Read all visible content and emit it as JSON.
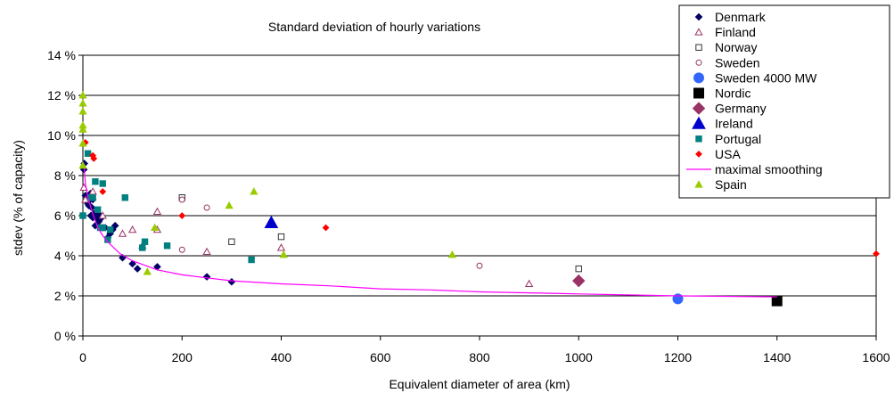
{
  "chart_data": {
    "type": "scatter",
    "title": "Standard deviation of hourly variations",
    "xlabel": "Equivalent diameter of area (km)",
    "ylabel": "stdev (% of capacity)",
    "xlim": [
      0,
      1600
    ],
    "ylim": [
      0,
      14
    ],
    "x_ticks": [
      0,
      200,
      400,
      600,
      800,
      1000,
      1200,
      1400,
      1600
    ],
    "y_ticks": [
      0,
      2,
      4,
      6,
      8,
      10,
      12,
      14
    ],
    "y_tick_suffix": " %",
    "grid": "horizontal",
    "legend_position": "top-right",
    "series": [
      {
        "name": "Denmark",
        "marker": "diamond",
        "color": "#000066",
        "filled": true,
        "points": [
          [
            2,
            8.3
          ],
          [
            3,
            8.6
          ],
          [
            5,
            7.0
          ],
          [
            8,
            6.8
          ],
          [
            10,
            6.6
          ],
          [
            12,
            6.5
          ],
          [
            14,
            6.8
          ],
          [
            15,
            7.1
          ],
          [
            16,
            6.0
          ],
          [
            18,
            6.4
          ],
          [
            20,
            6.8
          ],
          [
            20,
            5.9
          ],
          [
            22,
            6.1
          ],
          [
            25,
            5.5
          ],
          [
            28,
            6.0
          ],
          [
            30,
            6.1
          ],
          [
            30,
            5.8
          ],
          [
            32,
            5.7
          ],
          [
            35,
            6.0
          ],
          [
            38,
            5.9
          ],
          [
            40,
            5.4
          ],
          [
            45,
            5.4
          ],
          [
            50,
            4.9
          ],
          [
            55,
            5.1
          ],
          [
            60,
            5.3
          ],
          [
            65,
            5.5
          ],
          [
            80,
            3.9
          ],
          [
            100,
            3.6
          ],
          [
            110,
            3.35
          ],
          [
            150,
            3.45
          ],
          [
            250,
            2.95
          ],
          [
            300,
            2.7
          ]
        ]
      },
      {
        "name": "Finland",
        "marker": "triangle",
        "color": "#993366",
        "filled": false,
        "points": [
          [
            2,
            7.4
          ],
          [
            5,
            6.8
          ],
          [
            20,
            7.2
          ],
          [
            40,
            6.0
          ],
          [
            80,
            5.1
          ],
          [
            100,
            5.3
          ],
          [
            120,
            4.5
          ],
          [
            150,
            6.2
          ],
          [
            150,
            5.3
          ],
          [
            250,
            4.2
          ],
          [
            400,
            4.4
          ],
          [
            900,
            2.6
          ]
        ]
      },
      {
        "name": "Norway",
        "marker": "square",
        "color": "#333333",
        "filled": false,
        "points": [
          [
            200,
            6.9
          ],
          [
            300,
            4.7
          ],
          [
            400,
            4.95
          ],
          [
            1000,
            3.35
          ]
        ]
      },
      {
        "name": "Sweden",
        "marker": "circle",
        "color": "#993366",
        "filled": false,
        "points": [
          [
            200,
            6.8
          ],
          [
            200,
            4.3
          ],
          [
            250,
            6.4
          ],
          [
            800,
            3.5
          ]
        ]
      },
      {
        "name": "Sweden 4000 MW",
        "marker": "circle-large",
        "color": "#3366ff",
        "filled": true,
        "points": [
          [
            1200,
            1.85
          ]
        ]
      },
      {
        "name": "Nordic",
        "marker": "square-large",
        "color": "#000000",
        "filled": true,
        "points": [
          [
            1400,
            1.75
          ]
        ]
      },
      {
        "name": "Germany",
        "marker": "diamond-large",
        "color": "#993366",
        "filled": true,
        "points": [
          [
            1000,
            2.75
          ]
        ]
      },
      {
        "name": "Ireland",
        "marker": "triangle-large",
        "color": "#0000cc",
        "filled": true,
        "points": [
          [
            380,
            5.65
          ]
        ]
      },
      {
        "name": "Portugal",
        "marker": "square-small",
        "color": "#008080",
        "filled": true,
        "points": [
          [
            0,
            6.0
          ],
          [
            10,
            9.1
          ],
          [
            15,
            6.9
          ],
          [
            20,
            6.9
          ],
          [
            25,
            7.7
          ],
          [
            30,
            6.3
          ],
          [
            35,
            5.4
          ],
          [
            40,
            7.6
          ],
          [
            40,
            5.4
          ],
          [
            50,
            4.8
          ],
          [
            55,
            5.3
          ],
          [
            85,
            6.9
          ],
          [
            120,
            4.4
          ],
          [
            125,
            4.7
          ],
          [
            170,
            4.5
          ],
          [
            340,
            3.8
          ]
        ]
      },
      {
        "name": "USA",
        "marker": "diamond-small",
        "color": "#ff0000",
        "filled": true,
        "points": [
          [
            5,
            9.65
          ],
          [
            20,
            9.0
          ],
          [
            22,
            8.85
          ],
          [
            40,
            7.2
          ],
          [
            200,
            6.0
          ],
          [
            490,
            5.4
          ],
          [
            1600,
            4.1
          ]
        ]
      },
      {
        "name": "maximal smoothing",
        "marker": "line",
        "color": "#ff00ff",
        "filled": false,
        "points": [
          [
            2,
            8.6
          ],
          [
            5,
            7.6
          ],
          [
            10,
            6.9
          ],
          [
            20,
            6.1
          ],
          [
            30,
            5.4
          ],
          [
            40,
            5.0
          ],
          [
            50,
            4.7
          ],
          [
            75,
            4.1
          ],
          [
            100,
            3.75
          ],
          [
            150,
            3.3
          ],
          [
            200,
            3.05
          ],
          [
            250,
            2.9
          ],
          [
            300,
            2.75
          ],
          [
            400,
            2.6
          ],
          [
            500,
            2.5
          ],
          [
            600,
            2.35
          ],
          [
            700,
            2.3
          ],
          [
            800,
            2.2
          ],
          [
            900,
            2.15
          ],
          [
            1000,
            2.1
          ],
          [
            1200,
            2.0
          ],
          [
            1400,
            1.95
          ]
        ]
      },
      {
        "name": "Spain",
        "marker": "triangle",
        "color": "#99cc00",
        "filled": true,
        "points": [
          [
            0,
            12.0
          ],
          [
            0,
            11.6
          ],
          [
            0,
            11.2
          ],
          [
            0,
            10.5
          ],
          [
            0,
            10.3
          ],
          [
            0,
            9.6
          ],
          [
            0,
            8.5
          ],
          [
            130,
            3.2
          ],
          [
            145,
            5.4
          ],
          [
            295,
            6.5
          ],
          [
            345,
            7.2
          ],
          [
            405,
            4.05
          ],
          [
            745,
            4.05
          ]
        ]
      }
    ]
  }
}
